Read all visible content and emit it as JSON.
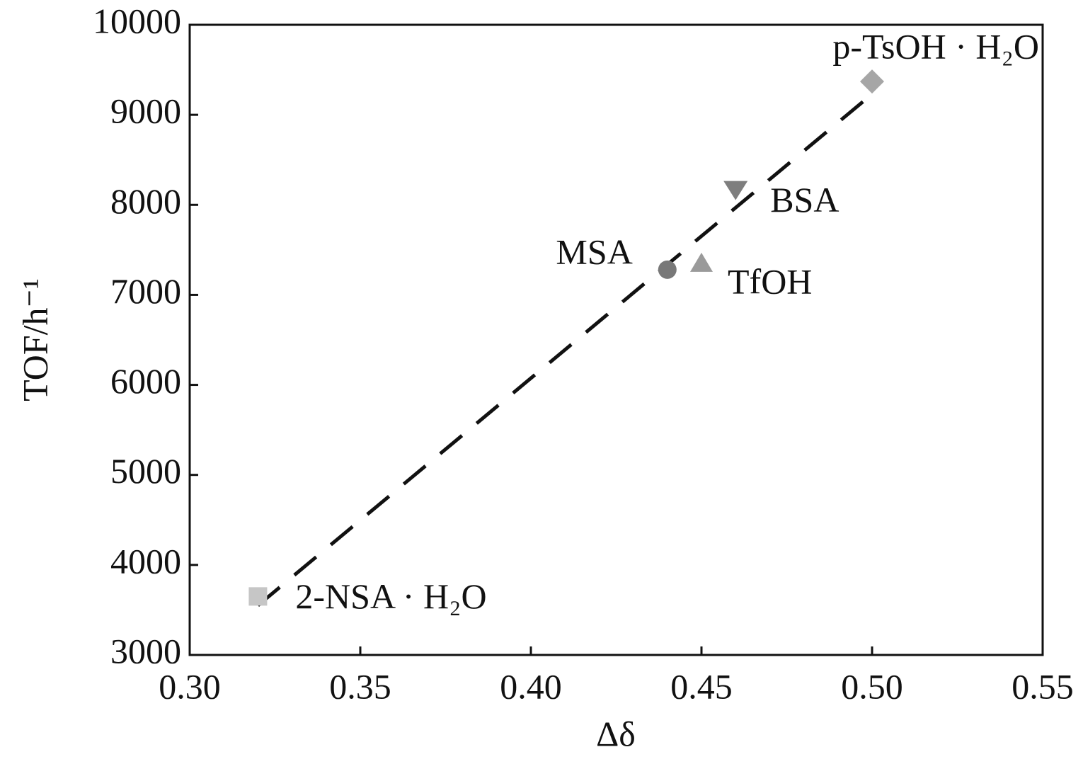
{
  "chart_data": {
    "type": "scatter",
    "xlabel": "Δδ",
    "ylabel": "TOF/h⁻¹",
    "xlim": [
      0.3,
      0.55
    ],
    "xticks": [
      {
        "value": 0.3,
        "label": "0.30"
      },
      0.35,
      {
        "value": 0.4,
        "label": "0.40"
      },
      0.45,
      {
        "value": 0.5,
        "label": "0.50"
      },
      0.55
    ],
    "ylim": [
      3000,
      10000
    ],
    "yticks": [
      3000,
      4000,
      5000,
      6000,
      7000,
      8000,
      9000,
      10000
    ],
    "series": [
      {
        "name": "2-NSA · H₂O",
        "color": "#c6c6c6",
        "marker": "square",
        "x": [
          0.32
        ],
        "values": [
          3650
        ]
      },
      {
        "name": "MSA",
        "color": "#787878",
        "marker": "circle",
        "x": [
          0.44
        ],
        "values": [
          7280
        ]
      },
      {
        "name": "TfOH",
        "color": "#9a9a9a",
        "marker": "triangle-up",
        "x": [
          0.45
        ],
        "values": [
          7350
        ]
      },
      {
        "name": "BSA",
        "color": "#7e7e7e",
        "marker": "triangle-down",
        "x": [
          0.46
        ],
        "values": [
          8170
        ]
      },
      {
        "name": "p-TsOH · H₂O",
        "color": "#a6a6a6",
        "marker": "diamond",
        "x": [
          0.5
        ],
        "values": [
          9370
        ]
      }
    ],
    "trendline": {
      "x": [
        0.32,
        0.5
      ],
      "y": [
        3550,
        9230
      ],
      "color": "#111111"
    }
  }
}
